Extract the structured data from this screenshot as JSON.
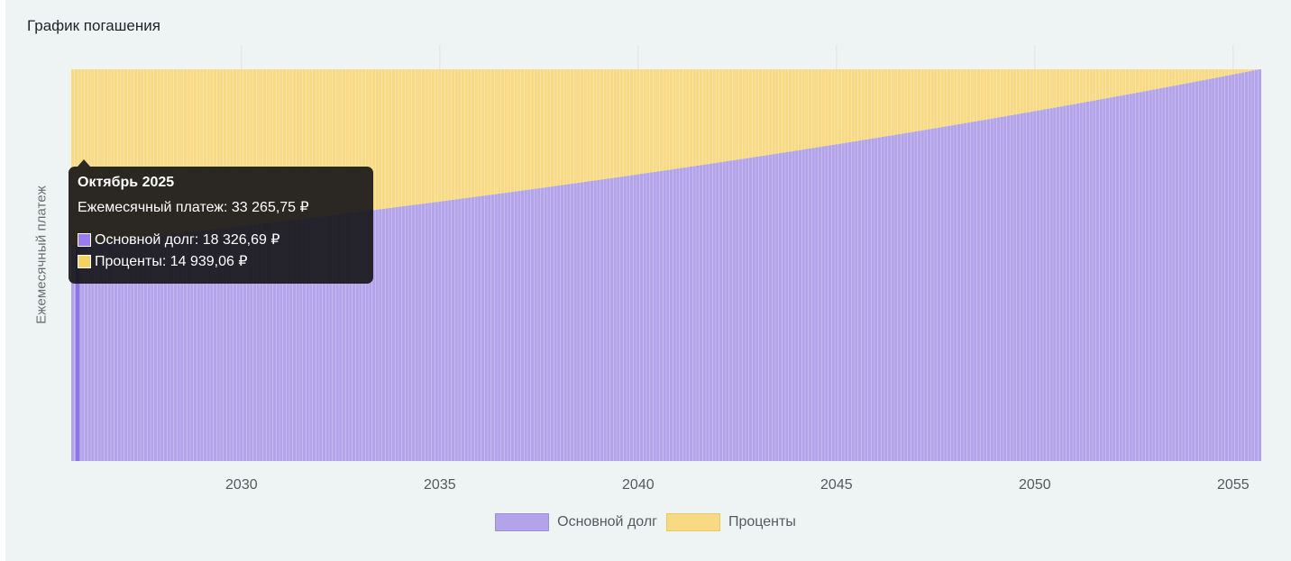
{
  "title": "График погашения",
  "colors": {
    "principal": "#b3a3ea",
    "interest": "#f8da85",
    "principal_swatch": "#9b7cf0",
    "interest_swatch": "#f5d264",
    "grid": "#dfe3e3",
    "axis_text": "#55595d"
  },
  "tooltip": {
    "title": "Октябрь 2025",
    "total": "Ежемесячный платеж: 33 265,75 ₽",
    "principal": "Основной долг: 18 326,69 ₽",
    "interest": "Проценты: 14 939,06 ₽"
  },
  "chart_data": {
    "type": "bar",
    "stacked": true,
    "ylabel": "Ежемесячный платеж",
    "xlabel": "",
    "x_ticks": [
      "2030",
      "2035",
      "2040",
      "2045",
      "2050",
      "2055"
    ],
    "x_range": [
      "2025-10",
      "2055-09"
    ],
    "payments_count": 360,
    "monthly_payment": 33265.75,
    "ylim": [
      0,
      33265.75
    ],
    "grid": true,
    "legend_position": "bottom",
    "series": [
      {
        "name": "Основной долг",
        "start": 18326.69,
        "end": 33265.75
      },
      {
        "name": "Проценты",
        "start": 14939.06,
        "end": 0
      }
    ]
  },
  "legend": {
    "principal": "Основной долг",
    "interest": "Проценты"
  }
}
